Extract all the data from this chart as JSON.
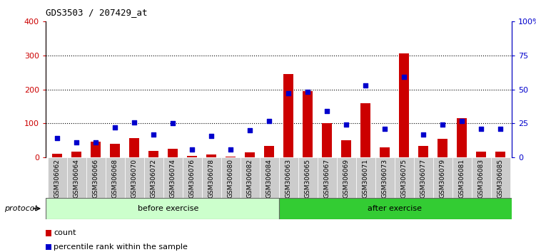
{
  "title": "GDS3503 / 207429_at",
  "categories": [
    "GSM306062",
    "GSM306064",
    "GSM306066",
    "GSM306068",
    "GSM306070",
    "GSM306072",
    "GSM306074",
    "GSM306076",
    "GSM306078",
    "GSM306080",
    "GSM306082",
    "GSM306084",
    "GSM306063",
    "GSM306065",
    "GSM306067",
    "GSM306069",
    "GSM306071",
    "GSM306073",
    "GSM306075",
    "GSM306077",
    "GSM306079",
    "GSM306081",
    "GSM306083",
    "GSM306085"
  ],
  "count_values": [
    10,
    18,
    47,
    40,
    57,
    20,
    25,
    5,
    8,
    3,
    15,
    35,
    245,
    195,
    100,
    50,
    160,
    30,
    305,
    35,
    55,
    115,
    18,
    18
  ],
  "percentile_values_pct": [
    14,
    11,
    11,
    22,
    26,
    17,
    25,
    6,
    16,
    6,
    20,
    27,
    47,
    48,
    34,
    24,
    53,
    21,
    59,
    17,
    24,
    27,
    21,
    21
  ],
  "before_exercise_count": 12,
  "after_exercise_count": 12,
  "bar_color": "#cc0000",
  "dot_color": "#0000cc",
  "before_bg": "#ccffcc",
  "after_bg": "#33cc33",
  "tick_label_bg": "#cccccc",
  "left_ylim": [
    0,
    400
  ],
  "right_ylim": [
    0,
    100
  ],
  "left_yticks": [
    0,
    100,
    200,
    300,
    400
  ],
  "right_yticks": [
    0,
    25,
    50,
    75,
    100
  ],
  "right_yticklabels": [
    "0",
    "25",
    "50",
    "75",
    "100%"
  ],
  "grid_values": [
    100,
    200,
    300
  ],
  "legend_count_label": "count",
  "legend_percentile_label": "percentile rank within the sample",
  "protocol_label": "protocol"
}
